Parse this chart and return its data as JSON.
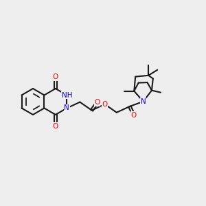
{
  "bg_color": "#eeeeee",
  "line_color": "#1a1a1a",
  "bond_width": 1.5,
  "atom_colors": {
    "O": "#ff0000",
    "N": "#0000ff",
    "H": "#008080",
    "C": "#1a1a1a"
  },
  "font_size": 7.5
}
